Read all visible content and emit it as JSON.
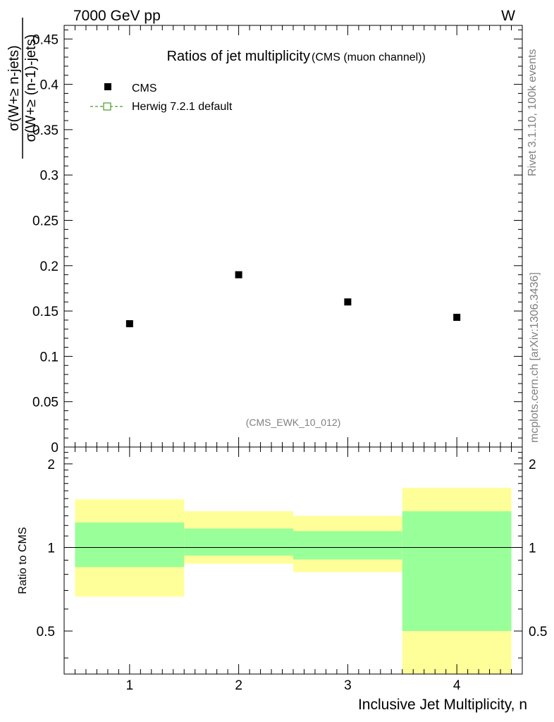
{
  "header": {
    "left": "7000 GeV pp",
    "right": "W"
  },
  "side": {
    "rivet": "Rivet 3.1.10,  100k events",
    "mcplots": "mcplots.cern.ch [arXiv:1306.3436]"
  },
  "chart_data": [
    {
      "type": "scatter",
      "title": "Ratios of jet multiplicity",
      "subtitle": "(CMS (muon channel))",
      "ylabel_num": "σ(W+≥ n-jets)",
      "ylabel_den": "σ(W+≥ (n-1)-jets)",
      "xlim": [
        0.4,
        4.6
      ],
      "ylim": [
        0,
        0.465
      ],
      "yticks": [
        0,
        0.05,
        0.1,
        0.15,
        0.2,
        0.25,
        0.3,
        0.35,
        0.4,
        0.45
      ],
      "ytick_labels": [
        "0",
        "0.05",
        "0.1",
        "0.15",
        "0.2",
        "0.25",
        "0.3",
        "0.35",
        "0.4",
        "0.45"
      ],
      "annotation": "(CMS_EWK_10_012)",
      "legend_position": "top-left",
      "series": [
        {
          "name": "CMS",
          "color": "#000000",
          "marker": "filled-square",
          "x": [
            1,
            2,
            3,
            4
          ],
          "y": [
            0.136,
            0.19,
            0.16,
            0.143
          ]
        },
        {
          "name": "Herwig 7.2.1 default",
          "color": "#4c9a2a",
          "marker": "open-square-dashed",
          "x": [],
          "y": []
        }
      ]
    },
    {
      "type": "area",
      "ylabel": "Ratio to CMS",
      "xlabel": "Inclusive Jet Multiplicity, n",
      "xlim": [
        0.4,
        4.6
      ],
      "ylim": [
        0.35,
        2.3
      ],
      "yticks": [
        0.5,
        1,
        2
      ],
      "ytick_labels": [
        "0.5",
        "1",
        "2"
      ],
      "xticks": [
        1,
        2,
        3,
        4
      ],
      "xtick_labels": [
        "1",
        "2",
        "3",
        "4"
      ],
      "reference_line": 1,
      "colors": {
        "stat": "#99ff99",
        "total": "#ffff99"
      },
      "bins": [
        {
          "lo": 0.5,
          "hi": 1.5,
          "stat": [
            0.85,
            1.23
          ],
          "total": [
            0.665,
            1.49
          ]
        },
        {
          "lo": 1.5,
          "hi": 2.5,
          "stat": [
            0.935,
            1.17
          ],
          "total": [
            0.875,
            1.35
          ]
        },
        {
          "lo": 2.5,
          "hi": 3.5,
          "stat": [
            0.905,
            1.145
          ],
          "total": [
            0.815,
            1.3
          ]
        },
        {
          "lo": 3.5,
          "hi": 4.5,
          "stat": [
            0.5,
            1.35
          ],
          "total": [
            0.35,
            1.64
          ]
        }
      ]
    }
  ]
}
